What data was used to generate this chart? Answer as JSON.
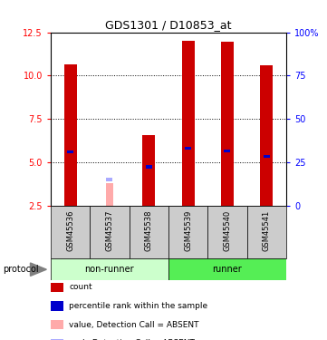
{
  "title": "GDS1301 / D10853_at",
  "samples": [
    "GSM45536",
    "GSM45537",
    "GSM45538",
    "GSM45539",
    "GSM45540",
    "GSM45541"
  ],
  "ylim_left": [
    2.5,
    12.5
  ],
  "ylim_right": [
    0,
    100
  ],
  "yticks_left": [
    2.5,
    5.0,
    7.5,
    10.0,
    12.5
  ],
  "yticks_right": [
    0,
    25,
    50,
    75,
    100
  ],
  "count_values": [
    10.65,
    null,
    6.55,
    12.0,
    11.95,
    10.6
  ],
  "count_bottom": [
    2.5,
    null,
    2.5,
    2.5,
    2.5,
    2.5
  ],
  "absent_value_values": [
    null,
    3.8,
    null,
    null,
    null,
    null
  ],
  "absent_value_bottom": [
    null,
    2.5,
    null,
    null,
    null,
    null
  ],
  "percentile_values": [
    5.6,
    null,
    4.75,
    5.8,
    5.65,
    5.35
  ],
  "absent_rank_values": [
    null,
    4.0,
    null,
    null,
    null,
    null
  ],
  "bar_color": "#cc0000",
  "absent_bar_color": "#ffaaaa",
  "percentile_color": "#0000cc",
  "absent_rank_color": "#aaaaff",
  "group_bg_nonrunner": "#ccffcc",
  "group_bg_runner": "#55ee55",
  "sample_bg": "#cccccc",
  "bar_width": 0.32,
  "sq_size": 0.18,
  "legend_items": [
    {
      "color": "#cc0000",
      "label": "count"
    },
    {
      "color": "#0000cc",
      "label": "percentile rank within the sample"
    },
    {
      "color": "#ffaaaa",
      "label": "value, Detection Call = ABSENT"
    },
    {
      "color": "#aaaaff",
      "label": "rank, Detection Call = ABSENT"
    }
  ]
}
